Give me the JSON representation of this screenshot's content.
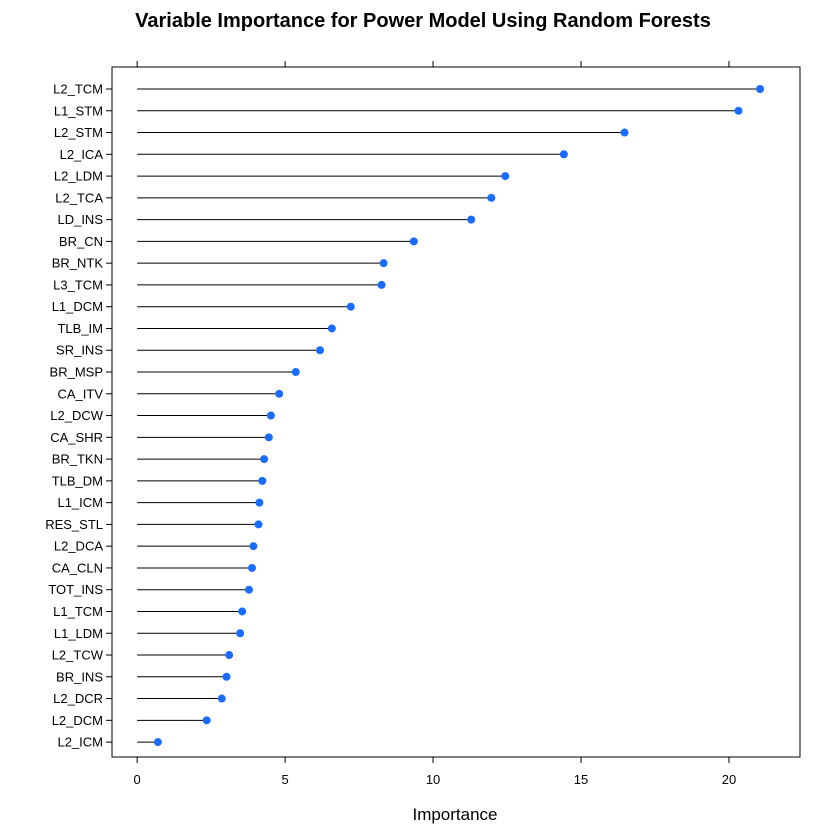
{
  "chart_data": {
    "type": "dotplot",
    "title": "Variable Importance for Power Model Using Random Forests",
    "xlabel": "Importance",
    "ylabel": "",
    "xlim": [
      -0.85,
      22.4
    ],
    "xticks": [
      "0",
      "5",
      "10",
      "15",
      "20"
    ],
    "xtick_values": [
      0,
      5,
      10,
      15,
      20
    ],
    "grid": false,
    "point_color": "#1a6cff",
    "categories": [
      "L2_TCM",
      "L1_STM",
      "L2_STM",
      "L2_ICA",
      "L2_LDM",
      "L2_TCA",
      "LD_INS",
      "BR_CN",
      "BR_NTK",
      "L3_TCM",
      "L1_DCM",
      "TLB_IM",
      "SR_INS",
      "BR_MSP",
      "CA_ITV",
      "L2_DCW",
      "CA_SHR",
      "BR_TKN",
      "TLB_DM",
      "L1_ICM",
      "RES_STL",
      "L2_DCA",
      "CA_CLN",
      "TOT_INS",
      "L1_TCM",
      "L1_LDM",
      "L2_TCW",
      "BR_INS",
      "L2_DCR",
      "L2_DCM",
      "L2_ICM"
    ],
    "values": [
      21.05,
      20.32,
      16.47,
      14.42,
      12.44,
      11.97,
      11.29,
      9.35,
      8.33,
      8.26,
      7.22,
      6.58,
      6.18,
      5.36,
      4.8,
      4.52,
      4.45,
      4.29,
      4.23,
      4.13,
      4.1,
      3.93,
      3.88,
      3.78,
      3.55,
      3.48,
      3.11,
      3.02,
      2.86,
      2.35,
      0.7
    ]
  }
}
